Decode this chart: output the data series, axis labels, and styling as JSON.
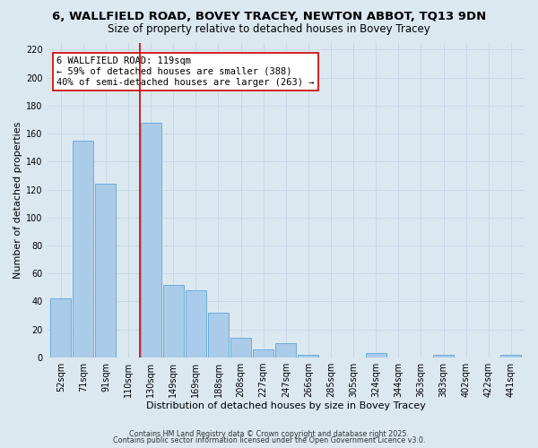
{
  "title_line1": "6, WALLFIELD ROAD, BOVEY TRACEY, NEWTON ABBOT, TQ13 9DN",
  "title_line2": "Size of property relative to detached houses in Bovey Tracey",
  "xlabel": "Distribution of detached houses by size in Bovey Tracey",
  "ylabel": "Number of detached properties",
  "categories": [
    "52sqm",
    "71sqm",
    "91sqm",
    "110sqm",
    "130sqm",
    "149sqm",
    "169sqm",
    "188sqm",
    "208sqm",
    "227sqm",
    "247sqm",
    "266sqm",
    "285sqm",
    "305sqm",
    "324sqm",
    "344sqm",
    "363sqm",
    "383sqm",
    "402sqm",
    "422sqm",
    "441sqm"
  ],
  "values": [
    42,
    155,
    124,
    0,
    168,
    52,
    48,
    32,
    14,
    6,
    10,
    2,
    0,
    0,
    3,
    0,
    0,
    2,
    0,
    0,
    2
  ],
  "bar_color": "#aacce8",
  "bar_edge_color": "#6aace0",
  "property_line_x": 3.5,
  "property_line_color": "#cc0000",
  "annotation_text": "6 WALLFIELD ROAD: 119sqm\n← 59% of detached houses are smaller (388)\n40% of semi-detached houses are larger (263) →",
  "annotation_box_color": "#ffffff",
  "annotation_box_edge": "#cc0000",
  "ylim": [
    0,
    225
  ],
  "yticks": [
    0,
    20,
    40,
    60,
    80,
    100,
    120,
    140,
    160,
    180,
    200,
    220
  ],
  "grid_color": "#c8d8e8",
  "bg_color": "#dce8f0",
  "footer_line1": "Contains HM Land Registry data © Crown copyright and database right 2025.",
  "footer_line2": "Contains public sector information licensed under the Open Government Licence v3.0.",
  "title_fontsize": 9.5,
  "subtitle_fontsize": 8.5,
  "tick_fontsize": 7,
  "label_fontsize": 8,
  "annotation_fontsize": 7.5,
  "footer_fontsize": 5.8
}
